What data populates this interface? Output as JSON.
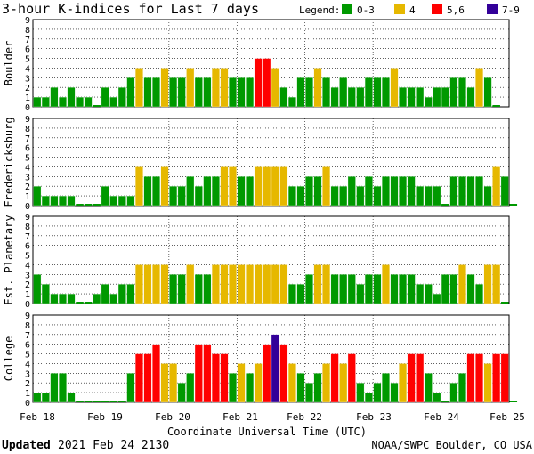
{
  "header": {
    "title": "3-hour K-indices for Last 7 days",
    "legend_label": "Legend:"
  },
  "legend": [
    {
      "label": "0-3",
      "color": "#009900"
    },
    {
      "label": "4",
      "color": "#e6b800"
    },
    {
      "label": "5,6",
      "color": "#ff0000"
    },
    {
      "label": "7-9",
      "color": "#330099"
    }
  ],
  "colors": {
    "low": "#009900",
    "moderate": "#e6b800",
    "storm": "#ff0000",
    "severe": "#330099"
  },
  "footer": {
    "updated_label": "Updated",
    "updated_value": "2021 Feb 24 2130",
    "source": "NOAA/SWPC Boulder, CO USA"
  },
  "chart_data": [
    {
      "type": "bar",
      "station": "Boulder",
      "ylim": [
        0,
        9
      ],
      "yticks": [
        "0",
        "1",
        "2",
        "3",
        "4",
        "5",
        "6",
        "7",
        "8",
        "9"
      ],
      "values": [
        1,
        1,
        2,
        1,
        2,
        1,
        1,
        0,
        2,
        1,
        2,
        3,
        4,
        3,
        3,
        4,
        3,
        3,
        4,
        3,
        3,
        4,
        4,
        3,
        3,
        3,
        5,
        5,
        4,
        2,
        1,
        3,
        3,
        4,
        3,
        2,
        3,
        2,
        2,
        3,
        3,
        3,
        4,
        2,
        2,
        2,
        1,
        2,
        2,
        3,
        3,
        2,
        4,
        3,
        0
      ]
    },
    {
      "type": "bar",
      "station": "Fredericksburg",
      "ylim": [
        0,
        9
      ],
      "yticks": [
        "0",
        "1",
        "2",
        "3",
        "4",
        "5",
        "6",
        "7",
        "8",
        "9"
      ],
      "values": [
        2,
        1,
        1,
        1,
        1,
        0,
        0,
        0,
        2,
        1,
        1,
        1,
        4,
        3,
        3,
        4,
        2,
        2,
        3,
        2,
        3,
        3,
        4,
        4,
        3,
        3,
        4,
        4,
        4,
        4,
        2,
        2,
        3,
        3,
        4,
        2,
        2,
        3,
        2,
        3,
        2,
        3,
        3,
        3,
        3,
        2,
        2,
        2,
        0,
        3,
        3,
        3,
        3,
        2,
        4,
        3,
        0
      ]
    },
    {
      "type": "bar",
      "station": "Est. Planetary",
      "ylim": [
        0,
        9
      ],
      "yticks": [
        "0",
        "1",
        "2",
        "3",
        "4",
        "5",
        "6",
        "7",
        "8",
        "9"
      ],
      "values": [
        3,
        2,
        1,
        1,
        1,
        0,
        0,
        1,
        2,
        1,
        2,
        2,
        4,
        4,
        4,
        4,
        3,
        3,
        4,
        3,
        3,
        4,
        4,
        4,
        4,
        4,
        4,
        4,
        4,
        4,
        2,
        2,
        3,
        4,
        4,
        3,
        3,
        3,
        2,
        3,
        3,
        4,
        3,
        3,
        3,
        2,
        2,
        1,
        3,
        3,
        4,
        3,
        2,
        4,
        4,
        0
      ]
    },
    {
      "type": "bar",
      "station": "College",
      "ylim": [
        0,
        9
      ],
      "yticks": [
        "0",
        "1",
        "2",
        "3",
        "4",
        "5",
        "6",
        "7",
        "8",
        "9"
      ],
      "values": [
        1,
        1,
        3,
        3,
        1,
        0,
        0,
        0,
        0,
        0,
        0,
        3,
        5,
        5,
        6,
        4,
        4,
        2,
        3,
        6,
        6,
        5,
        5,
        3,
        4,
        3,
        4,
        6,
        7,
        6,
        4,
        3,
        2,
        3,
        4,
        5,
        4,
        5,
        2,
        1,
        2,
        3,
        2,
        4,
        5,
        5,
        3,
        1,
        0,
        2,
        3,
        5,
        5,
        4,
        5,
        5,
        0
      ]
    }
  ],
  "x_axis": {
    "title": "Coordinate Universal Time (UTC)",
    "tick_labels": [
      "Feb 18",
      "Feb 19",
      "Feb 20",
      "Feb 21",
      "Feb 22",
      "Feb 23",
      "Feb 24",
      "Feb 25"
    ]
  }
}
